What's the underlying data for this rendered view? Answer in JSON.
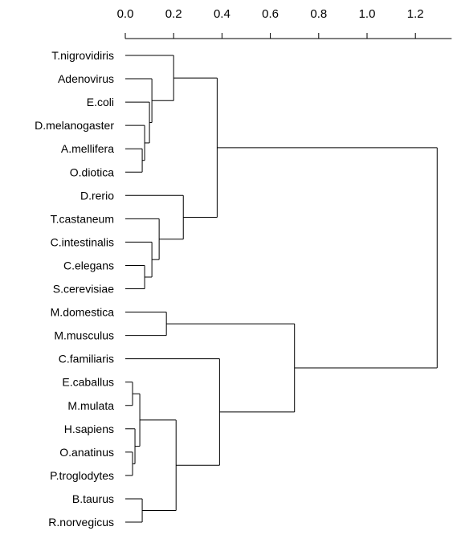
{
  "chart_data": {
    "type": "dendrogram",
    "orientation": "horizontal",
    "axis": {
      "position": "top",
      "ticks": [
        "0.0",
        "0.2",
        "0.4",
        "0.6",
        "0.8",
        "1.0",
        "1.2"
      ],
      "tick_values": [
        0.0,
        0.2,
        0.4,
        0.6,
        0.8,
        1.0,
        1.2
      ],
      "range": [
        0.0,
        1.35
      ]
    },
    "leaves": [
      "T.nigrovidiris",
      "Adenovirus",
      "E.coli",
      "D.melanogaster",
      "A.mellifera",
      "O.diotica",
      "D.rerio",
      "T.castaneum",
      "C.intestinalis",
      "C.elegans",
      "S.cerevisiae",
      "M.domestica",
      "M.musculus",
      "C.familiaris",
      "E.caballus",
      "M.mulata",
      "H.sapiens",
      "O.anatinus",
      "P.troglodytes",
      "B.taurus",
      "R.norvegicus"
    ],
    "merges": [
      {
        "id": "m1",
        "children": [
          "A.mellifera",
          "O.diotica"
        ],
        "height": 0.07
      },
      {
        "id": "m2",
        "children": [
          "D.melanogaster",
          "m1"
        ],
        "height": 0.08
      },
      {
        "id": "m3",
        "children": [
          "E.coli",
          "m2"
        ],
        "height": 0.1
      },
      {
        "id": "m4",
        "children": [
          "Adenovirus",
          "m3"
        ],
        "height": 0.11
      },
      {
        "id": "m5",
        "children": [
          "T.nigrovidiris",
          "m4"
        ],
        "height": 0.2
      },
      {
        "id": "m6",
        "children": [
          "C.elegans",
          "S.cerevisiae"
        ],
        "height": 0.08
      },
      {
        "id": "m7",
        "children": [
          "C.intestinalis",
          "m6"
        ],
        "height": 0.11
      },
      {
        "id": "m8",
        "children": [
          "T.castaneum",
          "m7"
        ],
        "height": 0.14
      },
      {
        "id": "m9",
        "children": [
          "D.rerio",
          "m8"
        ],
        "height": 0.24
      },
      {
        "id": "m10",
        "children": [
          "m5",
          "m9"
        ],
        "height": 0.38
      },
      {
        "id": "m11",
        "children": [
          "M.domestica",
          "M.musculus"
        ],
        "height": 0.17
      },
      {
        "id": "m12",
        "children": [
          "E.caballus",
          "M.mulata"
        ],
        "height": 0.03
      },
      {
        "id": "m13",
        "children": [
          "O.anatinus",
          "P.troglodytes"
        ],
        "height": 0.03
      },
      {
        "id": "m14",
        "children": [
          "H.sapiens",
          "m13"
        ],
        "height": 0.04
      },
      {
        "id": "m15",
        "children": [
          "m12",
          "m14"
        ],
        "height": 0.06
      },
      {
        "id": "m16",
        "children": [
          "B.taurus",
          "R.norvegicus"
        ],
        "height": 0.07
      },
      {
        "id": "m17",
        "children": [
          "m15",
          "m16"
        ],
        "height": 0.21
      },
      {
        "id": "m18",
        "children": [
          "C.familiaris",
          "m17"
        ],
        "height": 0.39
      },
      {
        "id": "m19",
        "children": [
          "m11",
          "m18"
        ],
        "height": 0.7
      },
      {
        "id": "m20",
        "children": [
          "m10",
          "m19"
        ],
        "height": 1.29
      }
    ]
  }
}
